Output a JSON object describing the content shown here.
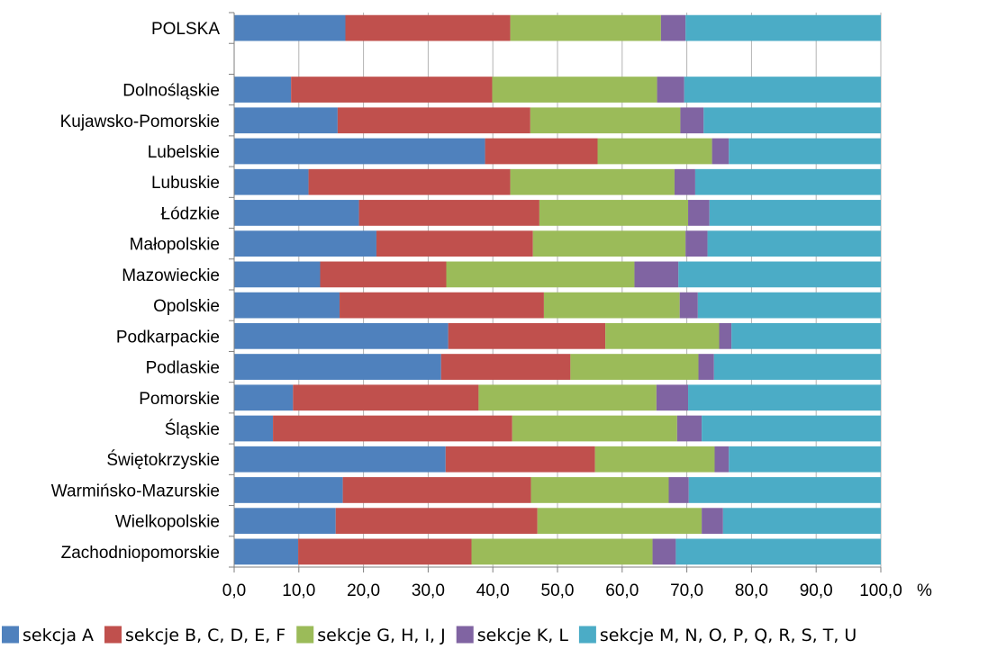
{
  "chart_data": {
    "type": "bar",
    "orientation": "horizontal",
    "stacked": true,
    "categories": [
      "POLSKA",
      "",
      "Dolnośląskie",
      "Kujawsko-Pomorskie",
      "Lubelskie",
      "Lubuskie",
      "Łódzkie",
      "Małopolskie",
      "Mazowieckie",
      "Opolskie",
      "Podkarpackie",
      "Podlaskie",
      "Pomorskie",
      "Śląskie",
      "Świętokrzyskie",
      "Warmińsko-Mazurskie",
      "Wielkopolskie",
      "Zachodniopomorskie"
    ],
    "series": [
      {
        "name": "sekcja A",
        "color": "#4f81bd",
        "values": [
          17.2,
          null,
          8.8,
          16.0,
          38.8,
          11.5,
          19.3,
          22.0,
          13.3,
          16.3,
          33.1,
          32.0,
          9.1,
          6.0,
          32.7,
          16.8,
          15.7,
          9.9
        ]
      },
      {
        "name": "sekcje B, C, D, E, F",
        "color": "#c0504d",
        "values": [
          25.5,
          null,
          31.1,
          29.8,
          17.4,
          31.2,
          27.9,
          24.2,
          19.5,
          31.6,
          24.3,
          20.0,
          28.7,
          37.0,
          23.1,
          29.1,
          31.2,
          26.8
        ]
      },
      {
        "name": "sekcje G, H, I, J",
        "color": "#9bbb59",
        "values": [
          23.3,
          null,
          25.5,
          23.2,
          17.7,
          25.4,
          23.0,
          23.6,
          29.1,
          21.0,
          17.6,
          19.8,
          27.5,
          25.5,
          18.5,
          21.3,
          25.4,
          28.0
        ]
      },
      {
        "name": "sekcje K, L",
        "color": "#8064a2",
        "values": [
          3.8,
          null,
          4.2,
          3.6,
          2.6,
          3.2,
          3.3,
          3.4,
          6.8,
          2.8,
          1.9,
          2.4,
          4.9,
          3.8,
          2.2,
          3.1,
          3.3,
          3.6
        ]
      },
      {
        "name": "sekcje M, N, O, P, Q, R, S, T, U",
        "color": "#4bacc6",
        "values": [
          30.2,
          null,
          30.4,
          27.4,
          23.5,
          28.7,
          26.5,
          26.8,
          31.3,
          28.3,
          23.1,
          25.8,
          29.8,
          27.7,
          23.5,
          29.7,
          24.4,
          31.7
        ]
      }
    ],
    "x_ticks": [
      "0,0",
      "10,0",
      "20,0",
      "30,0",
      "40,0",
      "50,0",
      "60,0",
      "70,0",
      "80,0",
      "90,0",
      "100,0"
    ],
    "xlim": [
      0,
      100
    ],
    "unit": "%",
    "grid": true,
    "legend_position": "bottom"
  }
}
